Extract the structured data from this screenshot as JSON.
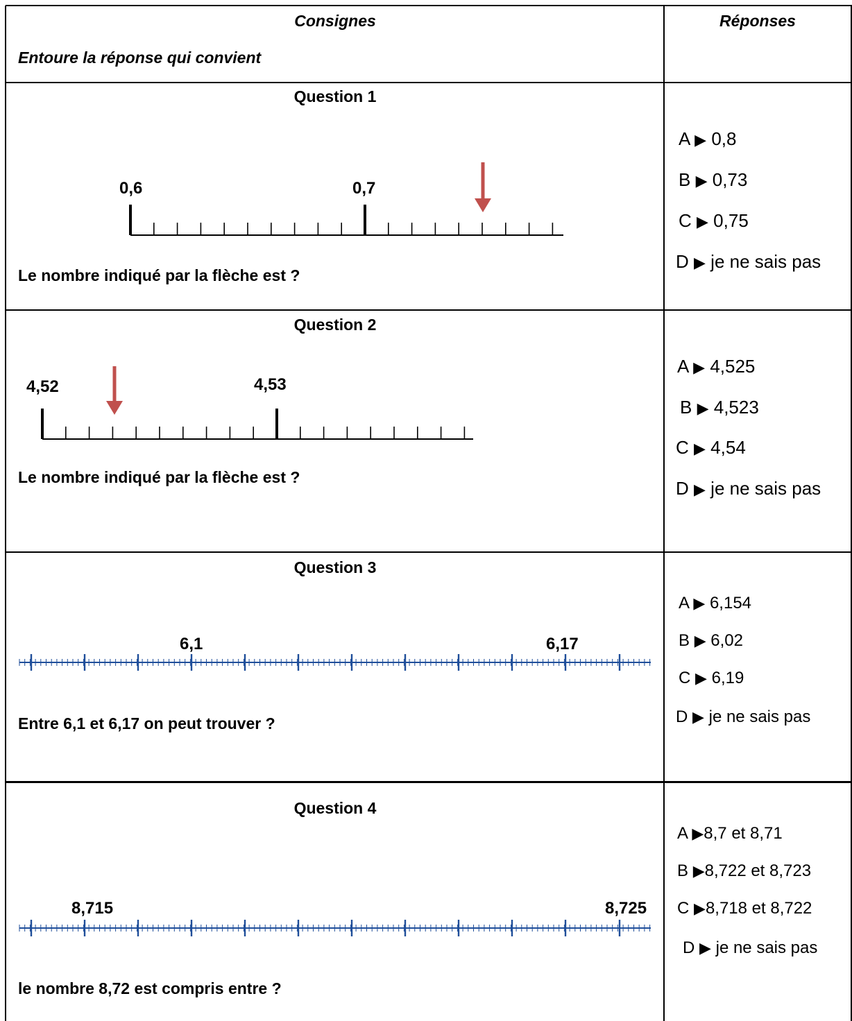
{
  "header": {
    "col1_title": "Consignes",
    "col2_title": "Réponses",
    "instruction": "Entoure la réponse qui convient"
  },
  "questions": [
    {
      "title": "Question 1",
      "prompt": "Le nombre indiqué par la flèche est ?",
      "tick_labels": [
        "0,6",
        "0,7"
      ],
      "answers": [
        {
          "letter": "A",
          "text": "0,8"
        },
        {
          "letter": "B",
          "text": "0,73"
        },
        {
          "letter": "C",
          "text": "0,75"
        },
        {
          "letter": "D",
          "text": "je ne sais pas"
        }
      ]
    },
    {
      "title": "Question 2",
      "prompt": "Le nombre indiqué par la flèche est ?",
      "tick_labels": [
        "4,52",
        "4,53"
      ],
      "answers": [
        {
          "letter": "A",
          "text": "4,525"
        },
        {
          "letter": "B",
          "text": "4,523"
        },
        {
          "letter": "C",
          "text": "4,54"
        },
        {
          "letter": "D",
          "text": "je ne sais pas"
        }
      ]
    },
    {
      "title": "Question 3",
      "prompt": "Entre 6,1 et 6,17 on peut trouver ?",
      "tick_labels": [
        "6,1",
        "6,17"
      ],
      "answers": [
        {
          "letter": "A",
          "text": "6,154"
        },
        {
          "letter": "B",
          "text": "6,02"
        },
        {
          "letter": "C",
          "text": "6,19"
        },
        {
          "letter": "D",
          "text": "je ne sais pas"
        }
      ]
    },
    {
      "title": "Question 4",
      "prompt": "le nombre 8,72 est compris entre ?",
      "tick_labels": [
        "8,715",
        "8,725"
      ],
      "answers": [
        {
          "letter": "A",
          "text": "8,7 et 8,71"
        },
        {
          "letter": "B",
          "text": "8,722 et 8,723"
        },
        {
          "letter": "C",
          "text": "8,718 et 8,722"
        },
        {
          "letter": "D",
          "text": "je ne sais pas"
        }
      ]
    }
  ],
  "colors": {
    "arrow": "#c0504d",
    "ruler_blue": "#1f4e9a",
    "border": "#000000"
  },
  "icons": {
    "answer_marker": "black-right-pointing-triangle",
    "pointer": "down-arrow"
  }
}
